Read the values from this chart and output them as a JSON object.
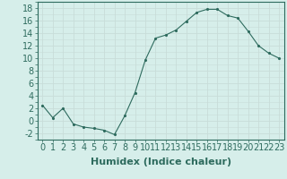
{
  "x": [
    0,
    1,
    2,
    3,
    4,
    5,
    6,
    7,
    8,
    9,
    10,
    11,
    12,
    13,
    14,
    15,
    16,
    17,
    18,
    19,
    20,
    21,
    22,
    23
  ],
  "y": [
    2.5,
    0.5,
    2.0,
    -0.5,
    -1.0,
    -1.2,
    -1.5,
    -2.2,
    0.8,
    4.5,
    9.7,
    13.2,
    13.7,
    14.5,
    15.9,
    17.3,
    17.8,
    17.8,
    16.8,
    16.4,
    14.3,
    12.0,
    10.8,
    10.0
  ],
  "line_color": "#2e6b5e",
  "marker": ".",
  "marker_color": "#2e6b5e",
  "bg_color": "#d6eeea",
  "grid_color": "#c8ddd9",
  "xlabel": "Humidex (Indice chaleur)",
  "xlabel_fontsize": 8,
  "tick_fontsize": 7,
  "ylim": [
    -3,
    19
  ],
  "xlim": [
    -0.5,
    23.5
  ],
  "yticks": [
    -2,
    0,
    2,
    4,
    6,
    8,
    10,
    12,
    14,
    16,
    18
  ],
  "xticks": [
    0,
    1,
    2,
    3,
    4,
    5,
    6,
    7,
    8,
    9,
    10,
    11,
    12,
    13,
    14,
    15,
    16,
    17,
    18,
    19,
    20,
    21,
    22,
    23
  ]
}
